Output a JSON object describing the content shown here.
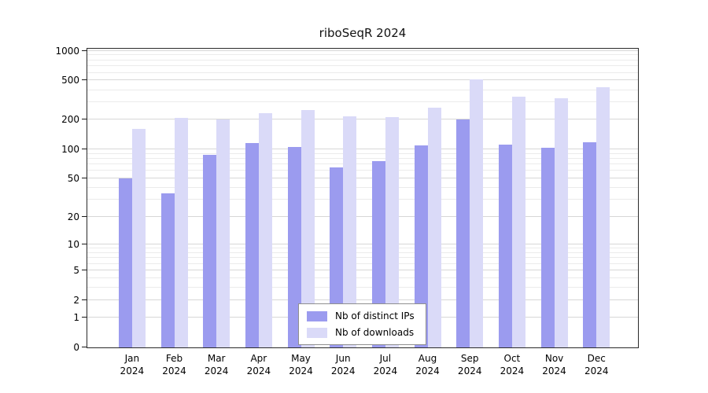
{
  "title": "riboSeqR 2024",
  "chart_data": {
    "type": "bar",
    "title": "riboSeqR 2024",
    "scale": "log1p",
    "grid": true,
    "legend_position": "bottom-center-inside",
    "categories": [
      "Jan",
      "Feb",
      "Mar",
      "Apr",
      "May",
      "Jun",
      "Jul",
      "Aug",
      "Sep",
      "Oct",
      "Nov",
      "Dec"
    ],
    "year": "2024",
    "series": [
      {
        "name": "Nb of distinct IPs",
        "color": "#9b9bef",
        "values": [
          50,
          35,
          88,
          115,
          105,
          65,
          75,
          110,
          200,
          112,
          103,
          118
        ]
      },
      {
        "name": "Nb of downloads",
        "color": "#dadaf8",
        "values": [
          160,
          210,
          200,
          235,
          250,
          215,
          212,
          265,
          515,
          340,
          330,
          430
        ]
      }
    ],
    "y_ticks": [
      0,
      1,
      2,
      5,
      10,
      20,
      50,
      100,
      200,
      500,
      1000
    ],
    "y_minor_ticks": [
      3,
      4,
      6,
      7,
      8,
      9,
      30,
      40,
      60,
      70,
      80,
      90,
      300,
      400,
      600,
      700,
      800,
      900
    ],
    "ylim": [
      0,
      1000
    ],
    "colors": {
      "axis": "#2a2a2a",
      "grid_major": "#d7d7d7",
      "grid_minor": "#ebebeb"
    }
  }
}
